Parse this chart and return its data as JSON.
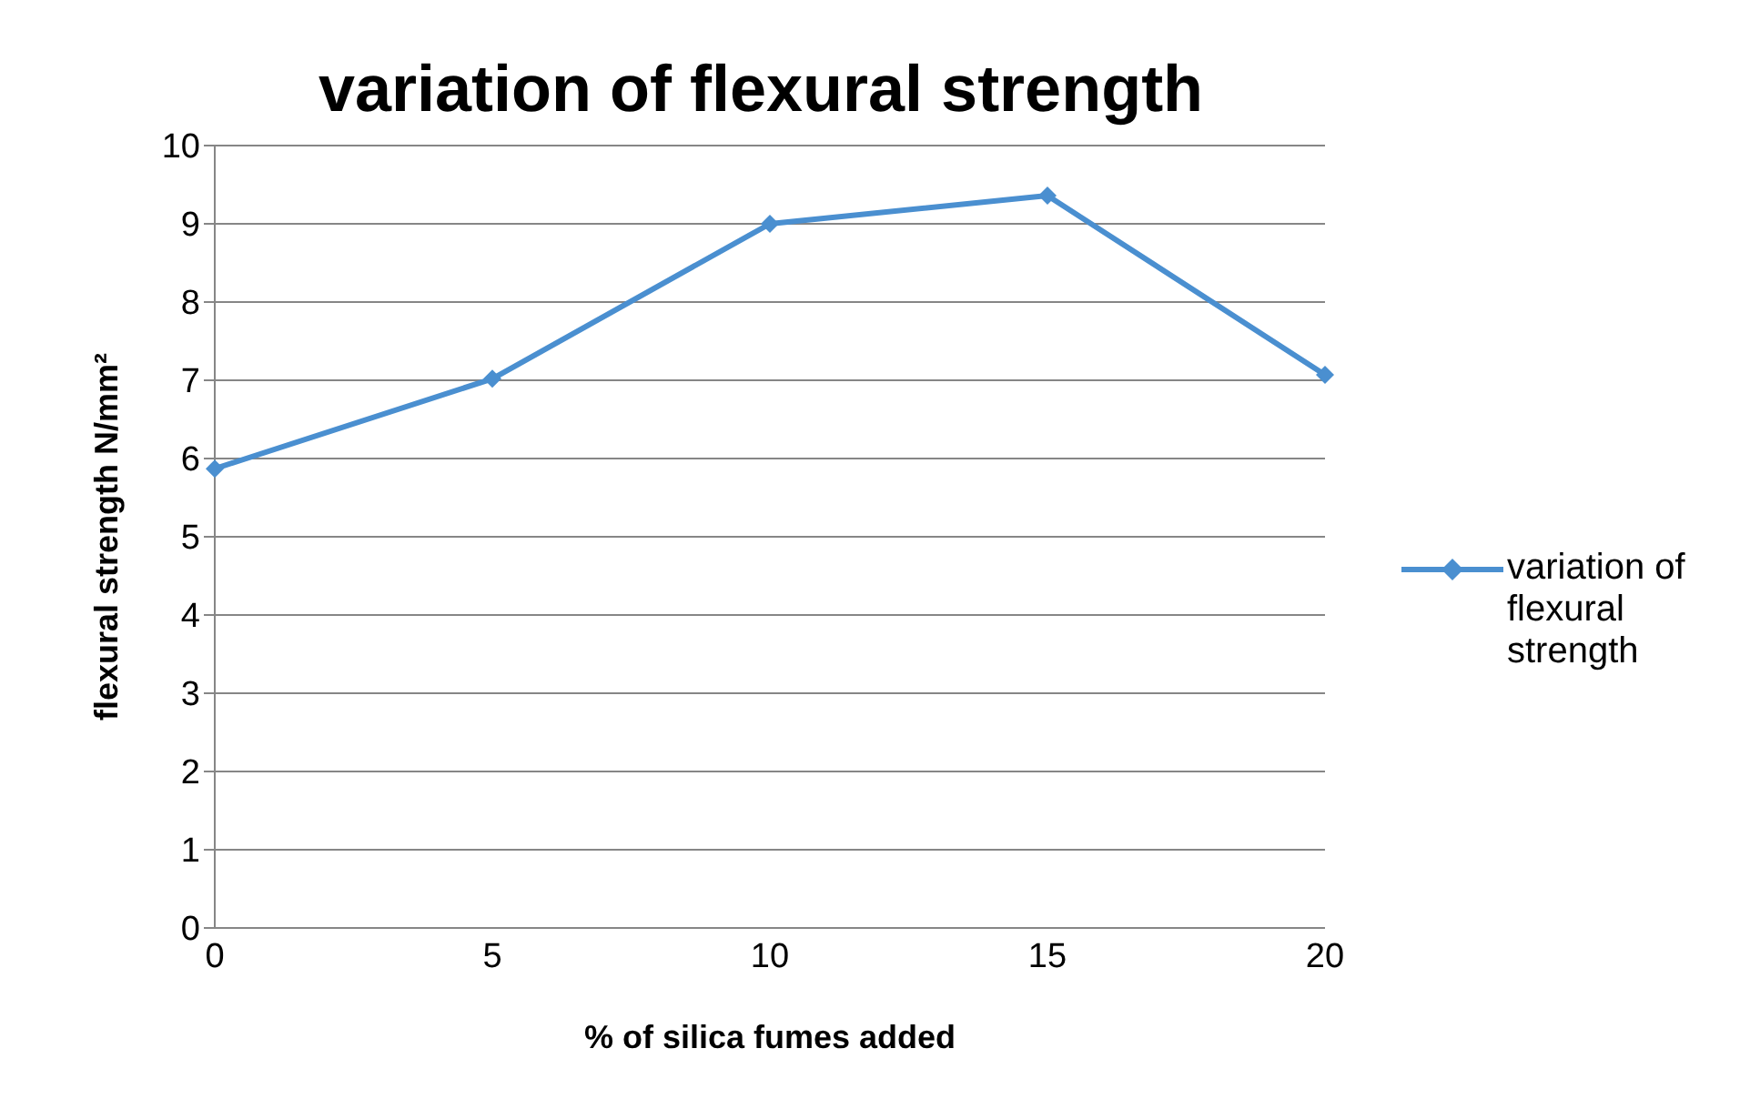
{
  "chart_data": {
    "type": "line",
    "title": "variation of flexural strength",
    "xlabel": "% of silica fumes added",
    "ylabel": "flexural strength N/mm²",
    "categories": [
      "0",
      "5",
      "10",
      "15",
      "20"
    ],
    "series": [
      {
        "name": "variation of flexural strength",
        "color": "#4a8fd0",
        "values": [
          5.87,
          7.02,
          9.0,
          9.36,
          7.07
        ]
      }
    ],
    "ylim": [
      0,
      10
    ],
    "yticks": [
      0,
      1,
      2,
      3,
      4,
      5,
      6,
      7,
      8,
      9,
      10
    ],
    "grid": "y",
    "legend": "right",
    "marker": "diamond",
    "line_style": "solid"
  }
}
